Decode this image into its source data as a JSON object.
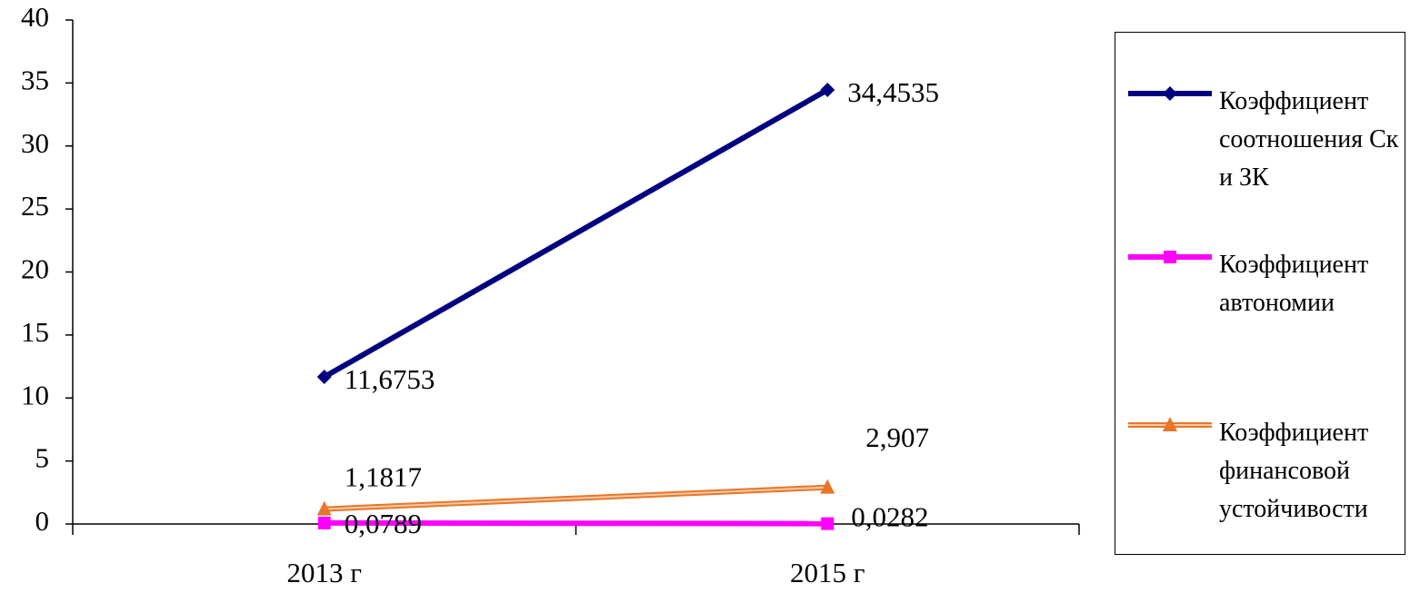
{
  "chart_data": {
    "type": "line",
    "categories": [
      "2013 г",
      "2015 г"
    ],
    "series": [
      {
        "name": "Коэффициент соотношения Ск и ЗК",
        "color": "#000080",
        "marker": "diamond",
        "values": [
          11.6753,
          34.4535
        ],
        "value_labels": [
          "11,6753",
          "34,4535"
        ]
      },
      {
        "name": "Коэффициент автономии",
        "color": "#ff00ff",
        "marker": "square",
        "values": [
          0.0789,
          0.0282
        ],
        "value_labels": [
          "0,0789",
          "0,0282"
        ]
      },
      {
        "name": "Коэффициент финансовой устойчивости",
        "color": "#e8762a",
        "marker": "triangle",
        "values": [
          1.1817,
          2.907
        ],
        "value_labels": [
          "1,1817",
          "2,907"
        ]
      }
    ],
    "ylim": [
      0,
      40
    ],
    "yticks": [
      0,
      5,
      10,
      15,
      20,
      25,
      30,
      35,
      40
    ],
    "grid": false,
    "legend": "right"
  }
}
